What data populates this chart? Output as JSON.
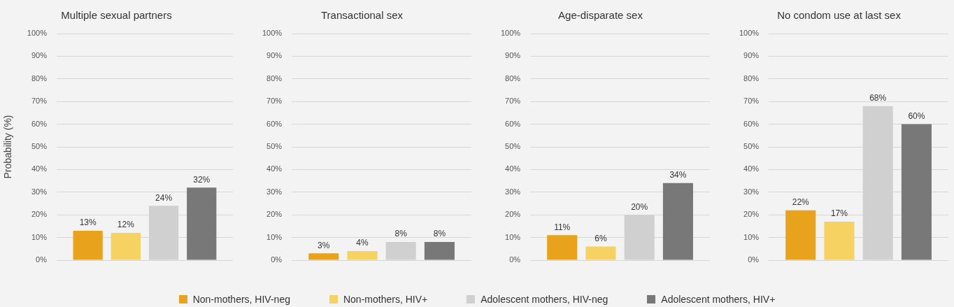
{
  "chart_data": [
    {
      "type": "bar",
      "title": "Multiple sexual partners",
      "ylabel": "Probability (%)",
      "categories": [
        null
      ],
      "ylim": [
        0,
        100
      ],
      "yticks": [
        {
          "value": 0,
          "label": "0%"
        },
        {
          "value": 10,
          "label": "10%"
        },
        {
          "value": 20,
          "label": "20%"
        },
        {
          "value": 30,
          "label": "30%"
        },
        {
          "value": 40,
          "label": "40%"
        },
        {
          "value": 50,
          "label": "50%"
        },
        {
          "value": 60,
          "label": "60%"
        },
        {
          "value": 70,
          "label": "70%"
        },
        {
          "value": 80,
          "label": "80%"
        },
        {
          "value": 90,
          "label": "90%"
        },
        {
          "value": 100,
          "label": "100%"
        }
      ],
      "grid": "y",
      "legend": "bottom",
      "series": [
        {
          "name": "Non-mothers, HIV-neg",
          "color": "#e9a21c",
          "values": [
            13
          ],
          "value_labels": [
            "13%"
          ]
        },
        {
          "name": "Non-mothers, HIV+",
          "color": "#f5d262",
          "values": [
            12
          ],
          "value_labels": [
            "12%"
          ]
        },
        {
          "name": "Adolescent mothers, HIV-neg",
          "color": "#d0d0d0",
          "values": [
            24
          ],
          "value_labels": [
            "24%"
          ]
        },
        {
          "name": "Adolescent mothers, HIV+",
          "color": "#787878",
          "values": [
            32
          ],
          "value_labels": [
            "32%"
          ]
        }
      ]
    },
    {
      "type": "bar",
      "title": "Transactional sex",
      "categories": [
        null
      ],
      "ylim": [
        0,
        100
      ],
      "yticks": [
        {
          "value": 0,
          "label": "0%"
        },
        {
          "value": 10,
          "label": "10%"
        },
        {
          "value": 20,
          "label": "20%"
        },
        {
          "value": 30,
          "label": "30%"
        },
        {
          "value": 40,
          "label": "40%"
        },
        {
          "value": 50,
          "label": "50%"
        },
        {
          "value": 60,
          "label": "60%"
        },
        {
          "value": 70,
          "label": "70%"
        },
        {
          "value": 80,
          "label": "80%"
        },
        {
          "value": 90,
          "label": "90%"
        },
        {
          "value": 100,
          "label": "100%"
        }
      ],
      "grid": "y",
      "series": [
        {
          "color": "#e9a21c",
          "values": [
            3
          ],
          "value_labels": [
            "3%"
          ]
        },
        {
          "color": "#f5d262",
          "values": [
            4
          ],
          "value_labels": [
            "4%"
          ]
        },
        {
          "color": "#d0d0d0",
          "values": [
            8
          ],
          "value_labels": [
            "8%"
          ]
        },
        {
          "color": "#787878",
          "values": [
            8
          ],
          "value_labels": [
            "8%"
          ]
        }
      ]
    },
    {
      "type": "bar",
      "title": "Age-disparate sex",
      "categories": [
        null
      ],
      "ylim": [
        0,
        100
      ],
      "yticks": [
        {
          "value": 0,
          "label": "0%"
        },
        {
          "value": 10,
          "label": "10%"
        },
        {
          "value": 20,
          "label": "20%"
        },
        {
          "value": 30,
          "label": "30%"
        },
        {
          "value": 40,
          "label": "40%"
        },
        {
          "value": 50,
          "label": "50%"
        },
        {
          "value": 60,
          "label": "60%"
        },
        {
          "value": 70,
          "label": "70%"
        },
        {
          "value": 80,
          "label": "80%"
        },
        {
          "value": 90,
          "label": "90%"
        },
        {
          "value": 100,
          "label": "100%"
        }
      ],
      "grid": "y",
      "series": [
        {
          "color": "#e9a21c",
          "values": [
            11
          ],
          "value_labels": [
            "11%"
          ]
        },
        {
          "color": "#f5d262",
          "values": [
            6
          ],
          "value_labels": [
            "6%"
          ]
        },
        {
          "color": "#d0d0d0",
          "values": [
            20
          ],
          "value_labels": [
            "20%"
          ]
        },
        {
          "color": "#787878",
          "values": [
            34
          ],
          "value_labels": [
            "34%"
          ]
        }
      ]
    },
    {
      "type": "bar",
      "title": "No condom use at last sex",
      "categories": [
        null
      ],
      "ylim": [
        0,
        100
      ],
      "yticks": [
        {
          "value": 0,
          "label": "0%"
        },
        {
          "value": 10,
          "label": "10%"
        },
        {
          "value": 20,
          "label": "20%"
        },
        {
          "value": 30,
          "label": "30%"
        },
        {
          "value": 40,
          "label": "40%"
        },
        {
          "value": 50,
          "label": "50%"
        },
        {
          "value": 60,
          "label": "60%"
        },
        {
          "value": 70,
          "label": "70%"
        },
        {
          "value": 80,
          "label": "80%"
        },
        {
          "value": 90,
          "label": "90%"
        },
        {
          "value": 100,
          "label": "100%"
        }
      ],
      "grid": "y",
      "series": [
        {
          "color": "#e9a21c",
          "values": [
            22
          ],
          "value_labels": [
            "22%"
          ]
        },
        {
          "color": "#f5d262",
          "values": [
            17
          ],
          "value_labels": [
            "17%"
          ]
        },
        {
          "color": "#d0d0d0",
          "values": [
            68
          ],
          "value_labels": [
            "68%"
          ]
        },
        {
          "color": "#787878",
          "values": [
            60
          ],
          "value_labels": [
            "60%"
          ]
        }
      ]
    }
  ]
}
